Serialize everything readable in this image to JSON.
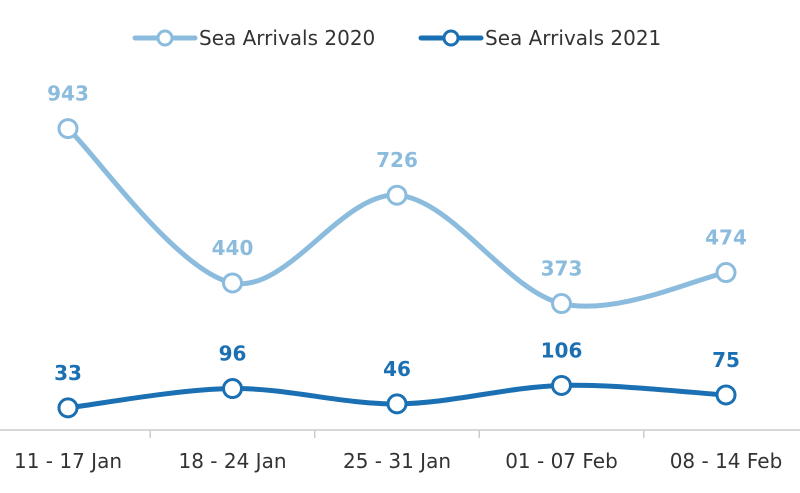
{
  "chart_data": {
    "type": "line",
    "categories": [
      "11 - 17 Jan",
      "18 - 24 Jan",
      "25 - 31 Jan",
      "01 - 07 Feb",
      "08 - 14 Feb"
    ],
    "series": [
      {
        "name": "Sea Arrivals 2020",
        "values": [
          943,
          440,
          726,
          373,
          474
        ],
        "color": "#8bbcdd"
      },
      {
        "name": "Sea Arrivals 2021",
        "values": [
          33,
          96,
          46,
          106,
          75
        ],
        "color": "#1a70b2"
      }
    ],
    "legend_position": "top-center",
    "grid": false,
    "smooth": true,
    "data_labels": true
  }
}
